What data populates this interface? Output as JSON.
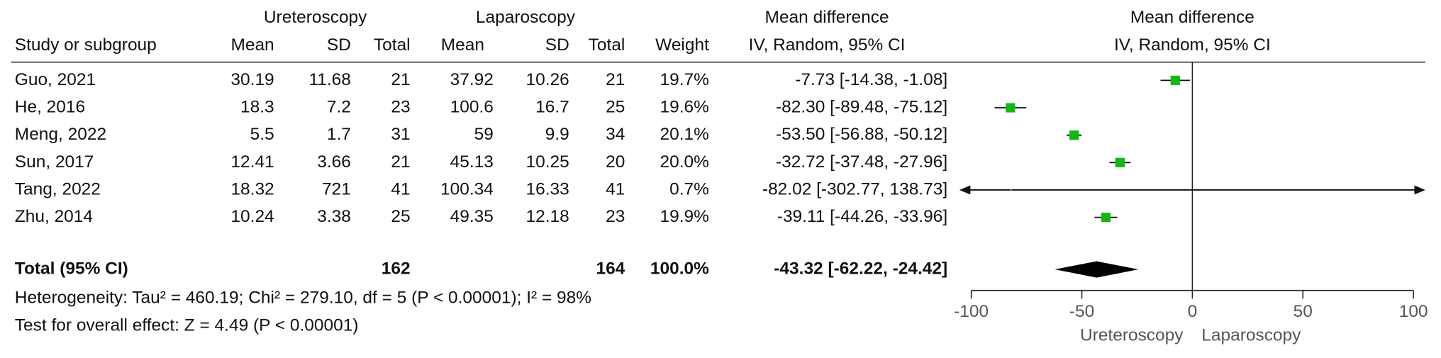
{
  "chart_data": {
    "type": "forest",
    "group_headers": {
      "ureteroscopy": "Ureteroscopy",
      "laparoscopy": "Laparoscopy",
      "effect": "Mean difference",
      "plot": "Mean difference"
    },
    "column_headers": {
      "study": "Study or subgroup",
      "u_mean": "Mean",
      "u_sd": "SD",
      "u_total": "Total",
      "l_mean": "Mean",
      "l_sd": "SD",
      "l_total": "Total",
      "weight": "Weight",
      "effect": "IV, Random, 95% CI",
      "plot": "IV, Random, 95% CI"
    },
    "studies": [
      {
        "name": "Guo, 2021",
        "u_mean": 30.19,
        "u_sd": 11.68,
        "u_total": 21,
        "l_mean": 37.92,
        "l_sd": 10.26,
        "l_total": 21,
        "weight": 19.7,
        "weight_label": "19.7%",
        "md": -7.73,
        "ci": [
          -14.38,
          -1.08
        ],
        "md_label": "-7.73 [-14.38, -1.08]"
      },
      {
        "name": "He, 2016",
        "u_mean": 18.3,
        "u_sd": 7.2,
        "u_total": 23,
        "l_mean": 100.6,
        "l_sd": 16.7,
        "l_total": 25,
        "weight": 19.6,
        "weight_label": "19.6%",
        "md": -82.3,
        "ci": [
          -89.48,
          -75.12
        ],
        "md_label": "-82.30 [-89.48, -75.12]"
      },
      {
        "name": "Meng, 2022",
        "u_mean": 5.5,
        "u_sd": 1.7,
        "u_total": 31,
        "l_mean": 59,
        "l_sd": 9.9,
        "l_total": 34,
        "weight": 20.1,
        "weight_label": "20.1%",
        "md": -53.5,
        "ci": [
          -56.88,
          -50.12
        ],
        "md_label": "-53.50 [-56.88, -50.12]"
      },
      {
        "name": "Sun, 2017",
        "u_mean": 12.41,
        "u_sd": 3.66,
        "u_total": 21,
        "l_mean": 45.13,
        "l_sd": 10.25,
        "l_total": 20,
        "weight": 20.0,
        "weight_label": "20.0%",
        "md": -32.72,
        "ci": [
          -37.48,
          -27.96
        ],
        "md_label": "-32.72 [-37.48, -27.96]"
      },
      {
        "name": "Tang, 2022",
        "u_mean": 18.32,
        "u_sd": 721,
        "u_total": 41,
        "l_mean": 100.34,
        "l_sd": 16.33,
        "l_total": 41,
        "weight": 0.7,
        "weight_label": "0.7%",
        "md": -82.02,
        "ci": [
          -302.77,
          138.73
        ],
        "md_label": "-82.02 [-302.77, 138.73]"
      },
      {
        "name": "Zhu, 2014",
        "u_mean": 10.24,
        "u_sd": 3.38,
        "u_total": 25,
        "l_mean": 49.35,
        "l_sd": 12.18,
        "l_total": 23,
        "weight": 19.9,
        "weight_label": "19.9%",
        "md": -39.11,
        "ci": [
          -44.26,
          -33.96
        ],
        "md_label": "-39.11 [-44.26, -33.96]"
      }
    ],
    "total": {
      "label": "Total (95% CI)",
      "u_total": 162,
      "l_total": 164,
      "weight": 100,
      "weight_label": "100.0%",
      "md": -43.32,
      "ci": [
        -62.22,
        -24.42
      ],
      "md_label": "-43.32 [-62.22, -24.42]"
    },
    "heterogeneity": "Heterogeneity: Tau² = 460.19; Chi² = 279.10, df = 5 (P < 0.00001); I² = 98%",
    "overall_effect": "Test for overall effect: Z = 4.49 (P < 0.00001)",
    "xlim": [
      -100,
      100
    ],
    "xticks": [
      -100,
      -50,
      0,
      50,
      100
    ],
    "favours": [
      "Ureteroscopy",
      "Laparoscopy"
    ],
    "marker_color": "#12b812",
    "diamond_color": "#000000"
  }
}
